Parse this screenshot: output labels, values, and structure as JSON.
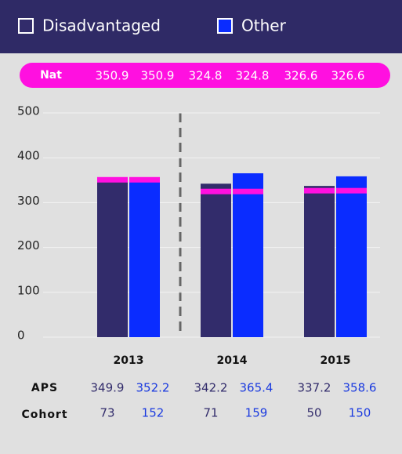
{
  "chart_data": {
    "type": "bar",
    "categories": [
      "2013",
      "2014",
      "2015"
    ],
    "series": [
      {
        "name": "Disadvantaged",
        "color": "#322c6b",
        "values": [
          349.9,
          342.2,
          337.2
        ],
        "cohort": [
          73,
          71,
          50
        ]
      },
      {
        "name": "Other",
        "color": "#0a2cff",
        "values": [
          352.2,
          365.4,
          358.6
        ],
        "cohort": [
          152,
          159,
          150
        ]
      }
    ],
    "nat": {
      "label": "Nat",
      "color": "#ff10e0",
      "values": [
        350.9,
        350.9,
        324.8,
        324.8,
        326.6,
        326.6
      ]
    },
    "row_labels": [
      "APS",
      "Cohort"
    ],
    "ylim": [
      0,
      500
    ],
    "yticks": [
      0,
      100,
      200,
      300,
      400,
      500
    ],
    "grid": true
  }
}
